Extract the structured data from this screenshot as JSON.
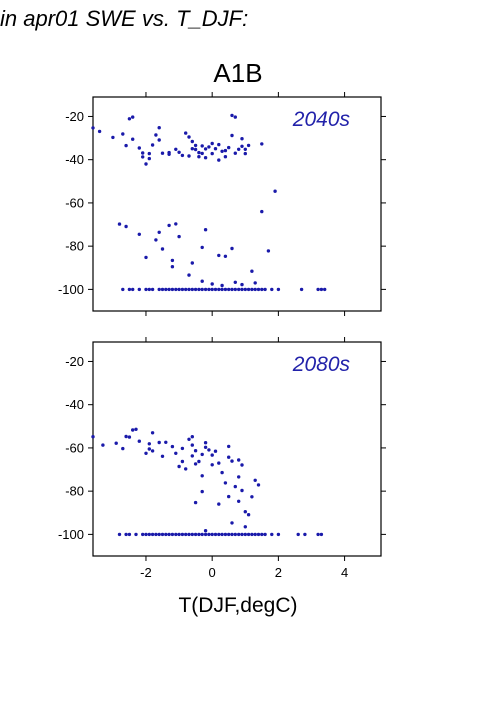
{
  "page": {
    "heading": "in apr01 SWE vs. T_DJF:",
    "scenario": "A1B",
    "xlabel": "T(DJF,degC)"
  },
  "chart_data": [
    {
      "type": "scatter",
      "label": "2040s",
      "xlim": [
        -3.6,
        5.1
      ],
      "ylim": [
        -110,
        -11
      ],
      "xticks": [
        -2,
        0,
        2,
        4
      ],
      "xtick_labels": [
        "-2",
        "0",
        "2",
        "4"
      ],
      "yticks": [
        -20,
        -40,
        -60,
        -80,
        -100
      ],
      "ytick_labels": [
        "-20",
        "-40",
        "-60",
        "-80",
        "-100"
      ],
      "point_color": "#1a1aaa",
      "points": [
        [
          -3.6,
          -25.3
        ],
        [
          -3.4,
          -26.9
        ],
        [
          -3.0,
          -29.7
        ],
        [
          -2.7,
          -28.1
        ],
        [
          -2.6,
          -33.5
        ],
        [
          -2.5,
          -21.1
        ],
        [
          -2.4,
          -20.3
        ],
        [
          -2.4,
          -30.5
        ],
        [
          -2.2,
          -34.6
        ],
        [
          -2.1,
          -38.7
        ],
        [
          -2.1,
          -36.9
        ],
        [
          -2.0,
          -42.0
        ],
        [
          -1.9,
          -37.2
        ],
        [
          -1.8,
          -33.2
        ],
        [
          -1.9,
          -39.5
        ],
        [
          -1.7,
          -28.6
        ],
        [
          -1.6,
          -25.2
        ],
        [
          -1.6,
          -30.9
        ],
        [
          -1.5,
          -37.0
        ],
        [
          -1.3,
          -37.5
        ],
        [
          -1.3,
          -36.7
        ],
        [
          -1.1,
          -35.2
        ],
        [
          -1.0,
          -36.6
        ],
        [
          -0.9,
          -38.0
        ],
        [
          -0.8,
          -27.7
        ],
        [
          -0.7,
          -29.5
        ],
        [
          -0.7,
          -38.3
        ],
        [
          -0.6,
          -31.6
        ],
        [
          -0.6,
          -34.9
        ],
        [
          -0.5,
          -35.3
        ],
        [
          -0.5,
          -33.4
        ],
        [
          -0.4,
          -36.7
        ],
        [
          -0.4,
          -38.6
        ],
        [
          -0.3,
          -33.6
        ],
        [
          -0.3,
          -37.1
        ],
        [
          -0.2,
          -35.0
        ],
        [
          -0.2,
          -39.1
        ],
        [
          -0.1,
          -34.1
        ],
        [
          0.0,
          -37.2
        ],
        [
          0.0,
          -32.5
        ],
        [
          0.1,
          -34.9
        ],
        [
          0.2,
          -40.2
        ],
        [
          0.2,
          -33.0
        ],
        [
          0.3,
          -36.1
        ],
        [
          0.4,
          -35.8
        ],
        [
          0.4,
          -38.6
        ],
        [
          0.5,
          -34.4
        ],
        [
          0.6,
          -28.8
        ],
        [
          0.6,
          -19.5
        ],
        [
          0.7,
          -37.0
        ],
        [
          0.7,
          -20.3
        ],
        [
          0.8,
          -35.2
        ],
        [
          0.9,
          -33.8
        ],
        [
          0.9,
          -30.3
        ],
        [
          1.0,
          -37.2
        ],
        [
          1.0,
          -35.2
        ],
        [
          1.1,
          -33.4
        ],
        [
          1.5,
          -32.7
        ],
        [
          1.9,
          -54.6
        ],
        [
          1.5,
          -64.0
        ],
        [
          -2.8,
          -69.8
        ],
        [
          -2.6,
          -70.9
        ],
        [
          -2.2,
          -74.5
        ],
        [
          -2.0,
          -85.2
        ],
        [
          -1.7,
          -77.1
        ],
        [
          -1.6,
          -73.6
        ],
        [
          -1.5,
          -81.3
        ],
        [
          -1.3,
          -70.4
        ],
        [
          -1.1,
          -69.7
        ],
        [
          -1.2,
          -86.6
        ],
        [
          -1.2,
          -89.5
        ],
        [
          -1.0,
          -75.6
        ],
        [
          -0.7,
          -93.4
        ],
        [
          -0.6,
          -87.8
        ],
        [
          -0.3,
          -80.6
        ],
        [
          -0.2,
          -72.4
        ],
        [
          0.2,
          -84.3
        ],
        [
          0.4,
          -84.7
        ],
        [
          0.6,
          -81.1
        ],
        [
          0.7,
          -96.7
        ],
        [
          0.9,
          -97.8
        ],
        [
          1.2,
          -91.6
        ],
        [
          1.7,
          -82.2
        ],
        [
          1.3,
          -97.0
        ],
        [
          0.0,
          -97.5
        ],
        [
          -0.3,
          -96.2
        ],
        [
          0.3,
          -98.2
        ],
        [
          -2.7,
          -100
        ],
        [
          -2.5,
          -100
        ],
        [
          -2.4,
          -100
        ],
        [
          -2.2,
          -100
        ],
        [
          -2.0,
          -100
        ],
        [
          -1.9,
          -100
        ],
        [
          -1.8,
          -100
        ],
        [
          -1.6,
          -100
        ],
        [
          -1.5,
          -100
        ],
        [
          -1.4,
          -100
        ],
        [
          -1.3,
          -100
        ],
        [
          -1.2,
          -100
        ],
        [
          -1.1,
          -100
        ],
        [
          -1.0,
          -100
        ],
        [
          -0.9,
          -100
        ],
        [
          -0.8,
          -100
        ],
        [
          -0.7,
          -100
        ],
        [
          -0.6,
          -100
        ],
        [
          -0.5,
          -100
        ],
        [
          -0.4,
          -100
        ],
        [
          -0.3,
          -100
        ],
        [
          -0.2,
          -100
        ],
        [
          -0.1,
          -100
        ],
        [
          0.0,
          -100
        ],
        [
          0.1,
          -100
        ],
        [
          0.2,
          -100
        ],
        [
          0.3,
          -100
        ],
        [
          0.4,
          -100
        ],
        [
          0.5,
          -100
        ],
        [
          0.6,
          -100
        ],
        [
          0.7,
          -100
        ],
        [
          0.8,
          -100
        ],
        [
          0.9,
          -100
        ],
        [
          1.0,
          -100
        ],
        [
          1.1,
          -100
        ],
        [
          1.2,
          -100
        ],
        [
          1.3,
          -100
        ],
        [
          1.4,
          -100
        ],
        [
          1.5,
          -100
        ],
        [
          1.6,
          -100
        ],
        [
          1.8,
          -100
        ],
        [
          2.0,
          -100
        ],
        [
          2.7,
          -100
        ],
        [
          3.2,
          -100
        ],
        [
          3.3,
          -100
        ],
        [
          3.4,
          -100
        ]
      ]
    },
    {
      "type": "scatter",
      "label": "2080s",
      "xlim": [
        -3.6,
        5.1
      ],
      "ylim": [
        -110,
        -11
      ],
      "xticks": [
        -2,
        0,
        2,
        4
      ],
      "xtick_labels": [
        "-2",
        "0",
        "2",
        "4"
      ],
      "yticks": [
        -20,
        -40,
        -60,
        -80,
        -100
      ],
      "ytick_labels": [
        "-20",
        "-40",
        "-60",
        "-80",
        "-100"
      ],
      "point_color": "#1a1aaa",
      "points": [
        [
          -3.6,
          -54.8
        ],
        [
          -3.3,
          -58.7
        ],
        [
          -2.9,
          -57.8
        ],
        [
          -2.7,
          -60.3
        ],
        [
          -2.6,
          -54.7
        ],
        [
          -2.5,
          -55.0
        ],
        [
          -2.4,
          -51.7
        ],
        [
          -2.3,
          -51.4
        ],
        [
          -2.2,
          -56.9
        ],
        [
          -2.0,
          -62.5
        ],
        [
          -1.9,
          -60.5
        ],
        [
          -1.9,
          -58.1
        ],
        [
          -1.8,
          -61.4
        ],
        [
          -1.8,
          -53.0
        ],
        [
          -1.6,
          -57.5
        ],
        [
          -1.5,
          -63.9
        ],
        [
          -1.4,
          -57.4
        ],
        [
          -1.2,
          -59.4
        ],
        [
          -1.1,
          -62.5
        ],
        [
          -1.0,
          -68.6
        ],
        [
          -0.9,
          -60.2
        ],
        [
          -0.9,
          -66.3
        ],
        [
          -0.8,
          -69.7
        ],
        [
          -0.7,
          -56.0
        ],
        [
          -0.6,
          -58.7
        ],
        [
          -0.6,
          -63.7
        ],
        [
          -0.6,
          -54.8
        ],
        [
          -0.5,
          -61.3
        ],
        [
          -0.5,
          -67.4
        ],
        [
          -0.4,
          -66.3
        ],
        [
          -0.3,
          -63.0
        ],
        [
          -0.3,
          -72.9
        ],
        [
          -0.2,
          -57.6
        ],
        [
          -0.2,
          -59.7
        ],
        [
          -0.1,
          -60.9
        ],
        [
          0.0,
          -63.3
        ],
        [
          0.0,
          -67.8
        ],
        [
          0.1,
          -61.5
        ],
        [
          0.2,
          -67.0
        ],
        [
          0.3,
          -71.4
        ],
        [
          0.4,
          -76.2
        ],
        [
          0.5,
          -64.3
        ],
        [
          0.5,
          -59.3
        ],
        [
          0.6,
          -66.1
        ],
        [
          0.7,
          -77.9
        ],
        [
          0.8,
          -65.6
        ],
        [
          0.8,
          -73.4
        ],
        [
          0.9,
          -67.9
        ],
        [
          0.9,
          -79.7
        ],
        [
          1.0,
          -89.5
        ],
        [
          1.1,
          -90.9
        ],
        [
          1.2,
          -82.6
        ],
        [
          1.3,
          -75.0
        ],
        [
          1.4,
          -77.1
        ],
        [
          0.8,
          -84.7
        ],
        [
          0.5,
          -82.5
        ],
        [
          -0.5,
          -85.3
        ],
        [
          -0.3,
          -80.2
        ],
        [
          0.2,
          -86.0
        ],
        [
          -0.2,
          -98.3
        ],
        [
          1.0,
          -96.5
        ],
        [
          0.6,
          -94.7
        ],
        [
          -2.8,
          -100
        ],
        [
          -2.6,
          -100
        ],
        [
          -2.5,
          -100
        ],
        [
          -2.3,
          -100
        ],
        [
          -2.1,
          -100
        ],
        [
          -2.0,
          -100
        ],
        [
          -1.9,
          -100
        ],
        [
          -1.8,
          -100
        ],
        [
          -1.7,
          -100
        ],
        [
          -1.6,
          -100
        ],
        [
          -1.5,
          -100
        ],
        [
          -1.4,
          -100
        ],
        [
          -1.3,
          -100
        ],
        [
          -1.2,
          -100
        ],
        [
          -1.1,
          -100
        ],
        [
          -1.0,
          -100
        ],
        [
          -0.9,
          -100
        ],
        [
          -0.8,
          -100
        ],
        [
          -0.7,
          -100
        ],
        [
          -0.6,
          -100
        ],
        [
          -0.5,
          -100
        ],
        [
          -0.4,
          -100
        ],
        [
          -0.3,
          -100
        ],
        [
          -0.2,
          -100
        ],
        [
          -0.1,
          -100
        ],
        [
          0.0,
          -100
        ],
        [
          0.1,
          -100
        ],
        [
          0.2,
          -100
        ],
        [
          0.3,
          -100
        ],
        [
          0.4,
          -100
        ],
        [
          0.5,
          -100
        ],
        [
          0.6,
          -100
        ],
        [
          0.7,
          -100
        ],
        [
          0.8,
          -100
        ],
        [
          0.9,
          -100
        ],
        [
          1.0,
          -100
        ],
        [
          1.1,
          -100
        ],
        [
          1.2,
          -100
        ],
        [
          1.3,
          -100
        ],
        [
          1.4,
          -100
        ],
        [
          1.5,
          -100
        ],
        [
          1.6,
          -100
        ],
        [
          1.8,
          -100
        ],
        [
          2.0,
          -100
        ],
        [
          2.6,
          -100
        ],
        [
          2.8,
          -100
        ],
        [
          3.2,
          -100
        ],
        [
          3.3,
          -100
        ]
      ]
    }
  ]
}
